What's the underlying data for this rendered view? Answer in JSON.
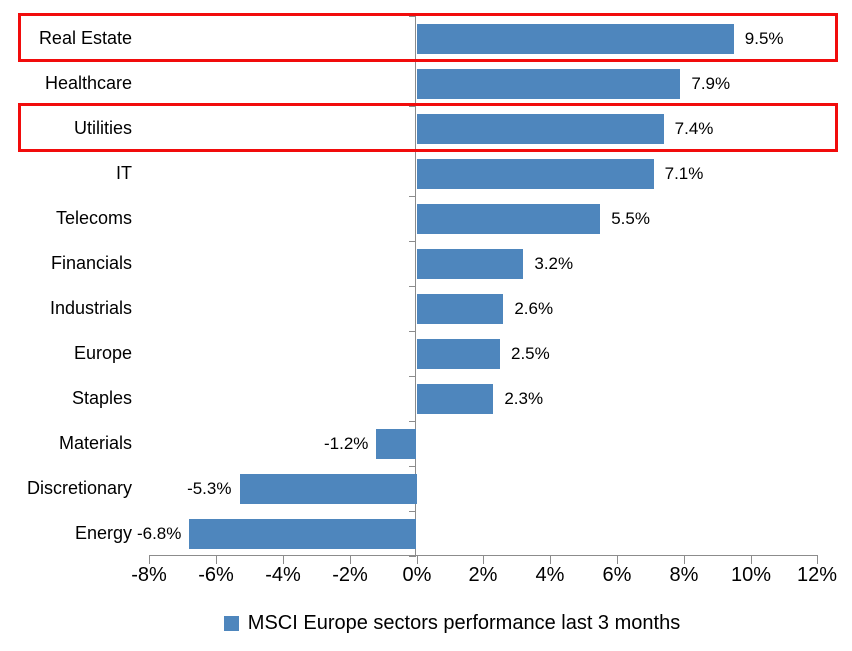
{
  "chart_data": {
    "type": "bar",
    "orientation": "horizontal",
    "title": "",
    "categories": [
      "Real Estate",
      "Healthcare",
      "Utilities",
      "IT",
      "Telecoms",
      "Financials",
      "Industrials",
      "Europe",
      "Staples",
      "Materials",
      "Discretionary",
      "Energy"
    ],
    "values": [
      9.5,
      7.9,
      7.4,
      7.1,
      5.5,
      3.2,
      2.6,
      2.5,
      2.3,
      -1.2,
      -5.3,
      -6.8
    ],
    "value_labels": [
      "9.5%",
      "7.9%",
      "7.4%",
      "7.1%",
      "5.5%",
      "3.2%",
      "2.6%",
      "2.5%",
      "2.3%",
      "-1.2%",
      "-5.3%",
      "-6.8%"
    ],
    "series_name": "MSCI Europe sectors performance last 3 months",
    "xlabel": "",
    "ylabel": "",
    "xlim": [
      -8,
      12
    ],
    "x_tick_step": 2,
    "x_tick_labels": [
      "-8%",
      "-6%",
      "-4%",
      "-2%",
      "0%",
      "2%",
      "4%",
      "6%",
      "8%",
      "10%",
      "12%"
    ],
    "grid": false,
    "legend_position": "bottom",
    "colors": {
      "bar": "#4e86bd",
      "axis": "#8c8c8c",
      "text": "#000000",
      "highlight_border": "#f10c0c"
    },
    "highlighted_categories": [
      "Real Estate",
      "Utilities"
    ]
  },
  "legend": {
    "label": "MSCI Europe sectors performance last 3 months"
  }
}
